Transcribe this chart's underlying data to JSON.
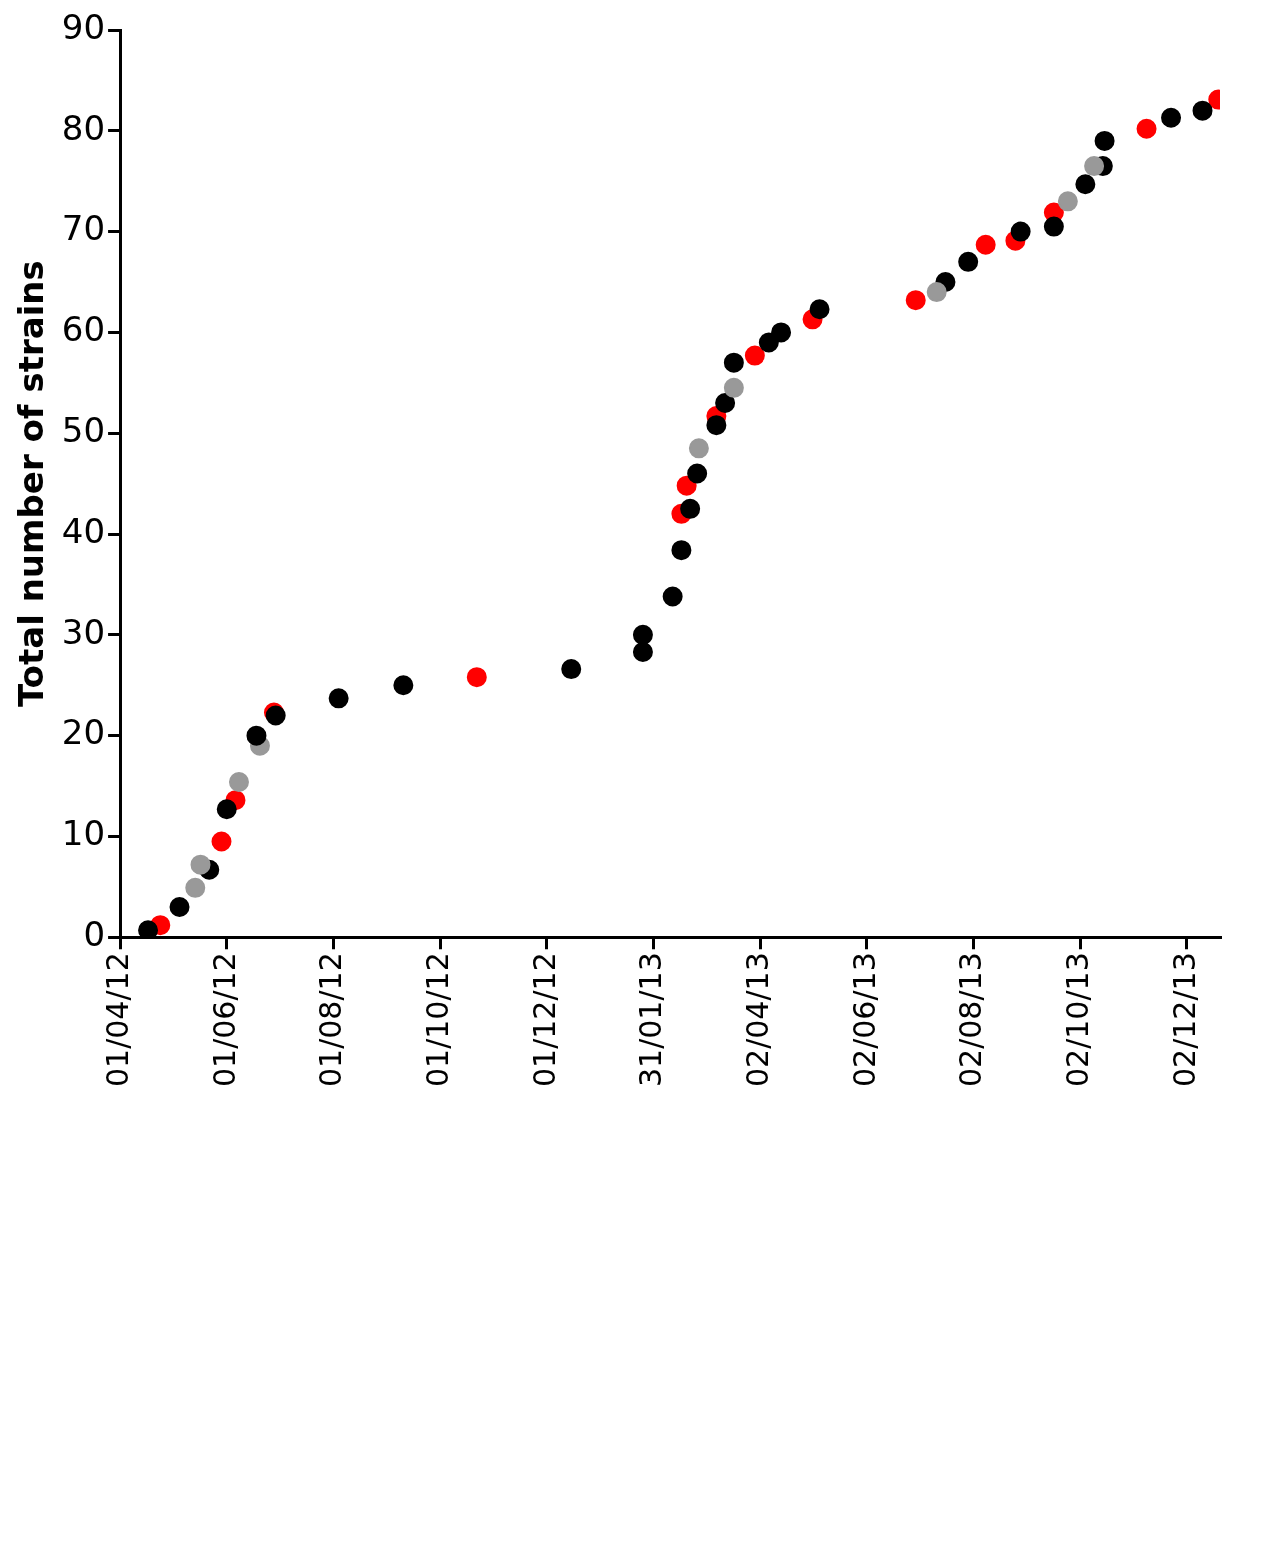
{
  "chart_data": {
    "type": "scatter",
    "ylabel": "Total number of strains",
    "xlim": [
      "2012-04-01",
      "2013-12-21"
    ],
    "xticks": [
      {
        "value": "2012-04-01",
        "label": "01/04/12"
      },
      {
        "value": "2012-06-01",
        "label": "01/06/12"
      },
      {
        "value": "2012-08-01",
        "label": "01/08/12"
      },
      {
        "value": "2012-10-01",
        "label": "01/10/12"
      },
      {
        "value": "2012-12-01",
        "label": "01/12/12"
      },
      {
        "value": "2013-01-31",
        "label": "31/01/13"
      },
      {
        "value": "2013-04-02",
        "label": "02/04/13"
      },
      {
        "value": "2013-06-02",
        "label": "02/06/13"
      },
      {
        "value": "2013-08-02",
        "label": "02/08/13"
      },
      {
        "value": "2013-10-02",
        "label": "02/10/13"
      },
      {
        "value": "2013-12-02",
        "label": "02/12/13"
      }
    ],
    "ylim": [
      0,
      90
    ],
    "yticks": [
      0,
      10,
      20,
      30,
      40,
      50,
      60,
      70,
      80,
      90
    ],
    "grid": false,
    "legend": false,
    "marker": "circle",
    "series": [
      {
        "color": "#000000",
        "x": [
          "2012-04-17",
          "2012-05-05",
          "2012-06-01",
          "2012-06-18",
          "2012-06-29",
          "2012-09-10",
          "2012-12-15",
          "2013-01-25",
          "2013-01-25",
          "2013-02-11",
          "2013-02-16",
          "2013-02-25",
          "2013-03-18",
          "2013-04-07",
          "2013-04-14",
          "2013-07-30",
          "2013-10-05",
          "2013-10-16",
          "2013-11-23"
        ],
        "values": [
          0.7,
          3,
          12.7,
          20,
          22,
          25,
          26.6,
          28.3,
          30,
          33.8,
          38.4,
          46,
          57,
          59,
          60,
          67,
          74.7,
          79,
          81.3
        ]
      },
      {
        "color": "#999999",
        "x": [
          "2012-05-14",
          "2012-05-17",
          "2012-06-08",
          "2012-06-20",
          "2013-02-26",
          "2013-03-18",
          "2013-07-12",
          "2013-09-25",
          "2013-10-10"
        ],
        "values": [
          4.9,
          7.2,
          15.4,
          19,
          48.5,
          54.5,
          64,
          73,
          76.5
        ]
      },
      {
        "color": "#000000",
        "x": [
          "2012-05-22",
          "2012-08-04",
          "2013-02-21",
          "2013-03-08",
          "2013-03-13",
          "2013-05-06",
          "2013-07-17",
          "2013-08-29",
          "2013-09-17",
          "2013-10-15",
          "2013-12-11"
        ],
        "values": [
          6.7,
          23.7,
          42.5,
          50.8,
          53,
          62.3,
          65,
          70,
          70.5,
          76.5,
          82
        ]
      },
      {
        "color": "#ff0000",
        "x": [
          "2012-04-24",
          "2012-05-29",
          "2012-06-06",
          "2012-06-28",
          "2012-10-22",
          "2013-02-16",
          "2013-02-19",
          "2013-03-08",
          "2013-03-30",
          "2013-05-02",
          "2013-06-30",
          "2013-08-09",
          "2013-08-26",
          "2013-09-17",
          "2013-11-09",
          "2013-12-20"
        ],
        "values": [
          1.2,
          9.5,
          13.6,
          22.3,
          25.8,
          42,
          44.8,
          51.7,
          57.7,
          61.3,
          63.2,
          68.7,
          69.1,
          71.9,
          80.2,
          83.1
        ]
      }
    ]
  }
}
